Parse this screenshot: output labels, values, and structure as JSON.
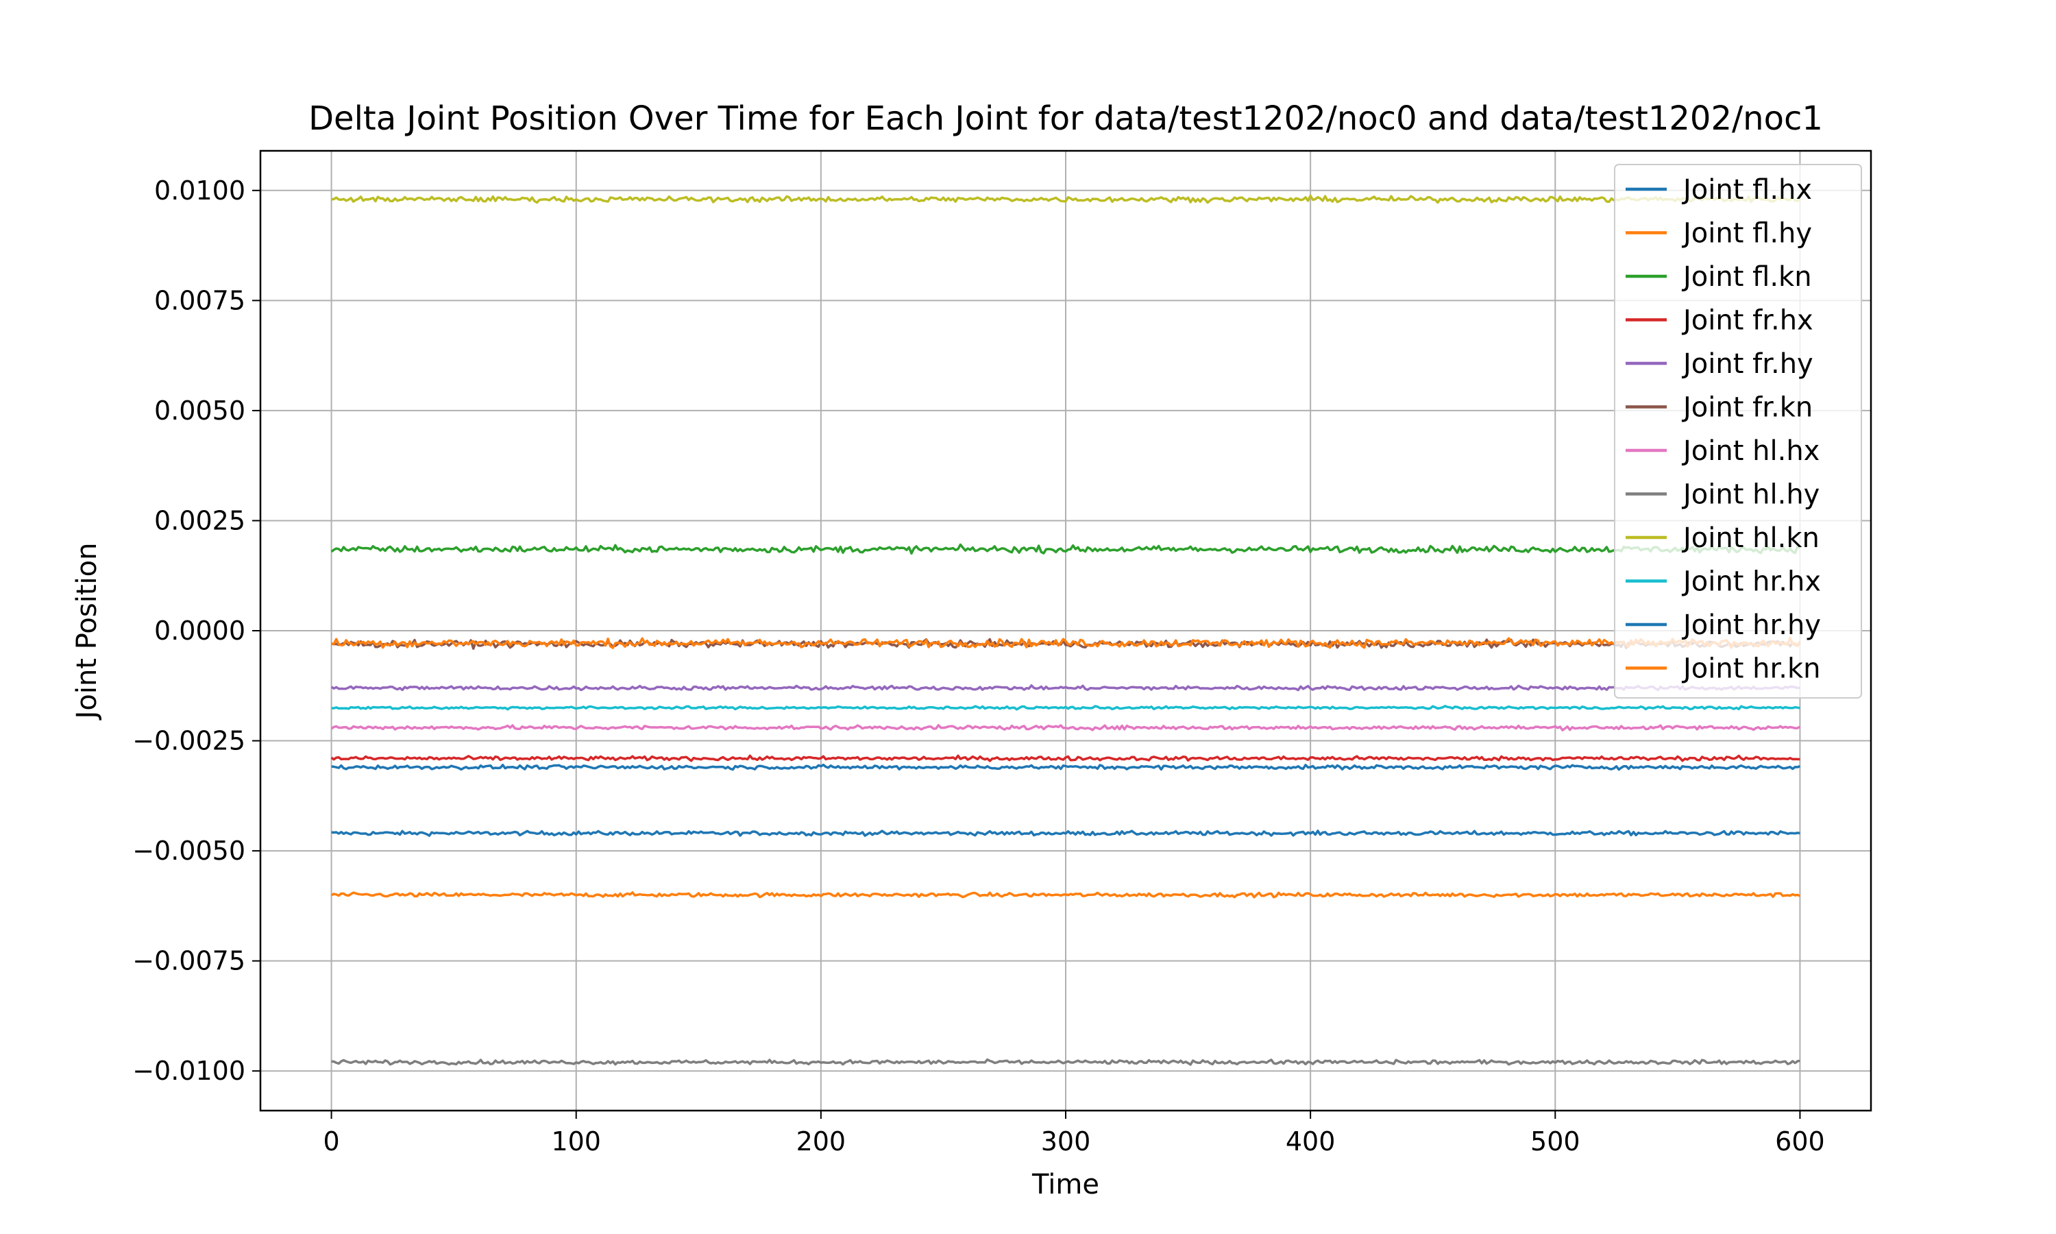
{
  "chart_data": {
    "type": "line",
    "title": "Delta Joint Position Over Time for Each Joint for data/test1202/noc0 and data/test1202/noc1",
    "xlabel": "Time",
    "ylabel": "Joint Position",
    "xlim": [
      -29,
      629
    ],
    "ylim": [
      -0.0109,
      0.0109
    ],
    "x_ticks": [
      0,
      100,
      200,
      300,
      400,
      500,
      600
    ],
    "x_tick_labels": [
      "0",
      "100",
      "200",
      "300",
      "400",
      "500",
      "600"
    ],
    "y_ticks": [
      0.01,
      0.0075,
      0.005,
      0.0025,
      0.0,
      -0.0025,
      -0.005,
      -0.0075,
      -0.01
    ],
    "y_tick_labels": [
      "0.0100",
      "0.0075",
      "0.0050",
      "0.0025",
      "0.0000",
      "−0.0025",
      "−0.0050",
      "−0.0075",
      "−0.0100"
    ],
    "x_range": [
      0,
      600
    ],
    "grid": true,
    "legend_position": "top-right",
    "series": [
      {
        "name": "Joint fl.hx",
        "color": "#1f77b4",
        "mean": -0.0046,
        "noise": 3e-05
      },
      {
        "name": "Joint fl.hy",
        "color": "#ff7f0e",
        "mean": -0.006,
        "noise": 3e-05
      },
      {
        "name": "Joint fl.kn",
        "color": "#2ca02c",
        "mean": 0.00185,
        "noise": 5e-05
      },
      {
        "name": "Joint fr.hx",
        "color": "#d62728",
        "mean": -0.0029,
        "noise": 3e-05
      },
      {
        "name": "Joint fr.hy",
        "color": "#9467bd",
        "mean": -0.0013,
        "noise": 3e-05
      },
      {
        "name": "Joint fr.kn",
        "color": "#8c564b",
        "mean": -0.0003,
        "noise": 5e-05
      },
      {
        "name": "Joint hl.hx",
        "color": "#e377c2",
        "mean": -0.0022,
        "noise": 3e-05
      },
      {
        "name": "Joint hl.hy",
        "color": "#7f7f7f",
        "mean": -0.0098,
        "noise": 3e-05
      },
      {
        "name": "Joint hl.kn",
        "color": "#bcbd22",
        "mean": 0.0098,
        "noise": 4e-05
      },
      {
        "name": "Joint hr.hx",
        "color": "#17becf",
        "mean": -0.00175,
        "noise": 2e-05
      },
      {
        "name": "Joint hr.hy",
        "color": "#1f77b4",
        "mean": -0.0031,
        "noise": 3e-05
      },
      {
        "name": "Joint hr.kn",
        "color": "#ff7f0e",
        "mean": -0.00028,
        "noise": 6e-05
      }
    ]
  }
}
